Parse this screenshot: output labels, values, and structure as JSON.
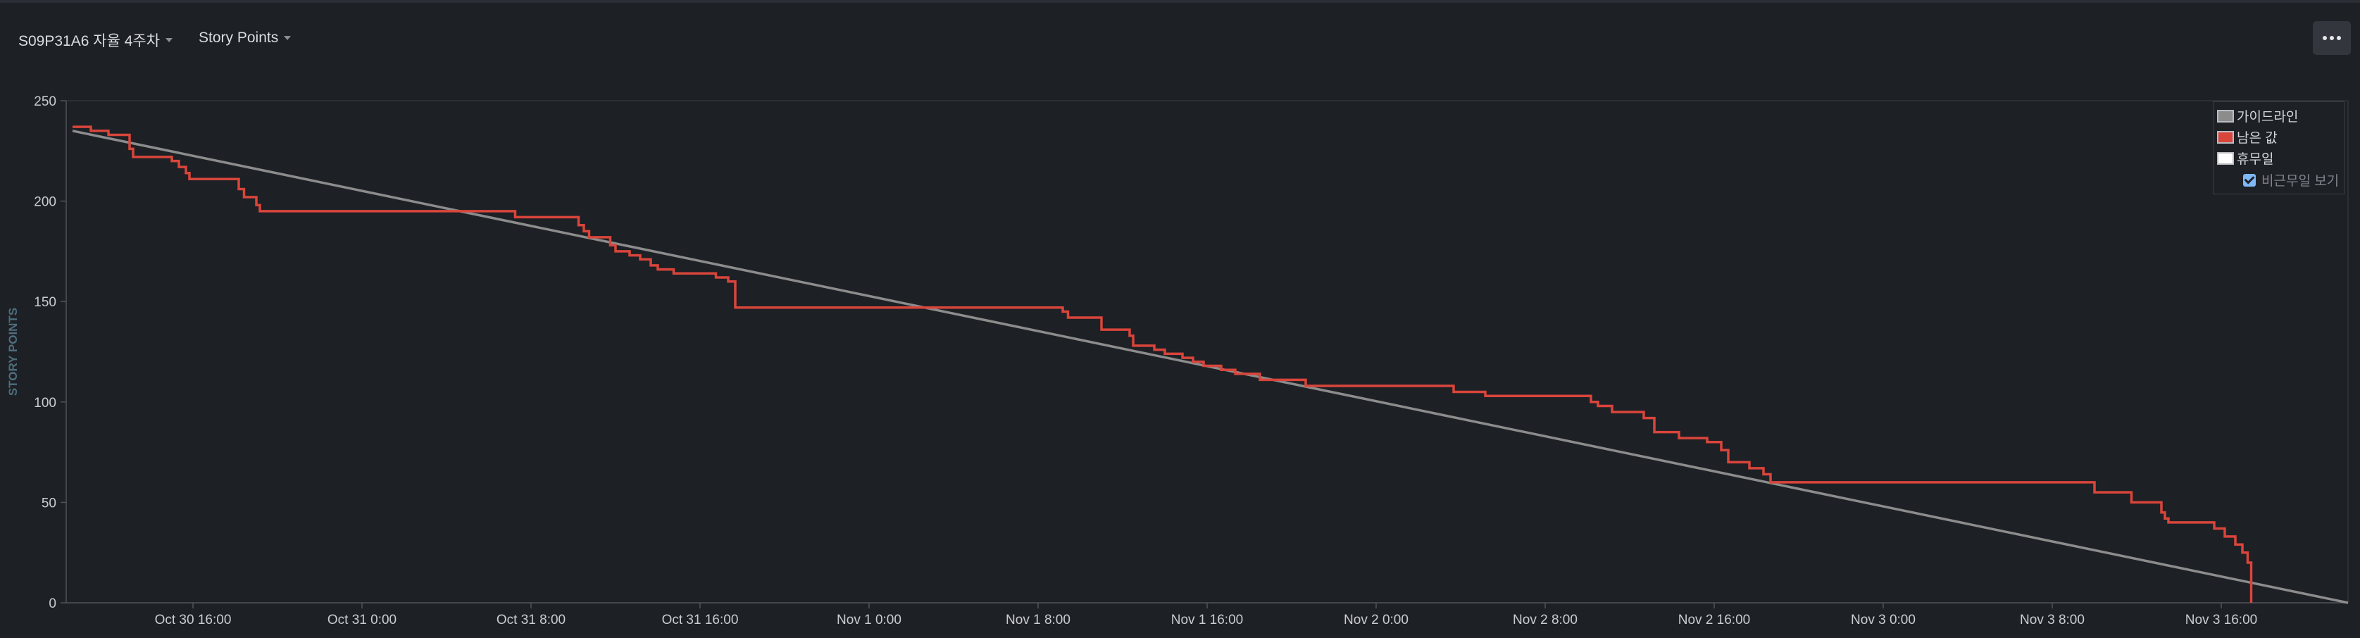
{
  "header": {
    "sprint_label": "S09P31A6 자율 4주차",
    "metric_label": "Story Points",
    "more_icon": "more-horizontal-icon"
  },
  "legend": {
    "items": [
      {
        "label": "가이드라인",
        "color": "#8c8c8c"
      },
      {
        "label": "남은 값",
        "color": "#d9453b"
      },
      {
        "label": "휴무일",
        "color": "#ffffff"
      }
    ],
    "show_non_working_label": "비근무일 보기",
    "show_non_working_checked": true
  },
  "chart_data": {
    "type": "line",
    "title": "",
    "xlabel": "",
    "ylabel": "STORY POINTS",
    "ylim": [
      0,
      250
    ],
    "yticks": [
      0,
      50,
      100,
      150,
      200,
      250
    ],
    "xlim": [
      "Oct 30 10:00",
      "Nov 3 22:00"
    ],
    "xticks": [
      "Oct 30 16:00",
      "Oct 31 0:00",
      "Oct 31 8:00",
      "Oct 31 16:00",
      "Nov 1 0:00",
      "Nov 1 8:00",
      "Nov 1 16:00",
      "Nov 2 0:00",
      "Nov 2 8:00",
      "Nov 2 16:00",
      "Nov 3 0:00",
      "Nov 3 8:00",
      "Nov 3 16:00"
    ],
    "grid": false,
    "legend_position": "top-right",
    "series": [
      {
        "name": "가이드라인",
        "color": "#8c8c8c",
        "step": false,
        "points": [
          [
            "Oct 30 10:18",
            235
          ],
          [
            "Nov 3 22:00",
            0
          ]
        ]
      },
      {
        "name": "남은 값",
        "color": "#d9453b",
        "step": true,
        "points": [
          [
            "Oct 30 10:18",
            237
          ],
          [
            "Oct 30 11:10",
            235
          ],
          [
            "Oct 30 12:00",
            233
          ],
          [
            "Oct 30 13:00",
            226
          ],
          [
            "Oct 30 13:10",
            222
          ],
          [
            "Oct 30 15:00",
            220
          ],
          [
            "Oct 30 15:20",
            217
          ],
          [
            "Oct 30 15:40",
            214
          ],
          [
            "Oct 30 15:50",
            211
          ],
          [
            "Oct 30 18:10",
            206
          ],
          [
            "Oct 30 18:25",
            202
          ],
          [
            "Oct 30 19:00",
            198
          ],
          [
            "Oct 30 19:10",
            195
          ],
          [
            "Oct 31 7:15",
            192
          ],
          [
            "Oct 31 10:15",
            188
          ],
          [
            "Oct 31 10:30",
            185
          ],
          [
            "Oct 31 10:45",
            182
          ],
          [
            "Oct 31 11:45",
            178
          ],
          [
            "Oct 31 12:00",
            175
          ],
          [
            "Oct 31 12:40",
            173
          ],
          [
            "Oct 31 13:10",
            171
          ],
          [
            "Oct 31 13:40",
            168
          ],
          [
            "Oct 31 14:00",
            166
          ],
          [
            "Oct 31 14:45",
            164
          ],
          [
            "Oct 31 16:45",
            162
          ],
          [
            "Oct 31 17:20",
            160
          ],
          [
            "Oct 31 17:40",
            147
          ],
          [
            "Nov 1 9:10",
            145
          ],
          [
            "Nov 1 9:25",
            142
          ],
          [
            "Nov 1 11:00",
            136
          ],
          [
            "Nov 1 12:20",
            133
          ],
          [
            "Nov 1 12:30",
            128
          ],
          [
            "Nov 1 13:30",
            126
          ],
          [
            "Nov 1 14:00",
            124
          ],
          [
            "Nov 1 14:50",
            122
          ],
          [
            "Nov 1 15:20",
            120
          ],
          [
            "Nov 1 15:50",
            118
          ],
          [
            "Nov 1 16:40",
            116
          ],
          [
            "Nov 1 17:20",
            114
          ],
          [
            "Nov 1 18:30",
            111
          ],
          [
            "Nov 1 20:40",
            108
          ],
          [
            "Nov 2 3:40",
            105
          ],
          [
            "Nov 2 5:10",
            103
          ],
          [
            "Nov 2 10:10",
            100
          ],
          [
            "Nov 2 10:30",
            98
          ],
          [
            "Nov 2 11:10",
            95
          ],
          [
            "Nov 2 12:40",
            92
          ],
          [
            "Nov 2 13:10",
            85
          ],
          [
            "Nov 2 14:20",
            82
          ],
          [
            "Nov 2 15:40",
            80
          ],
          [
            "Nov 2 16:20",
            76
          ],
          [
            "Nov 2 16:40",
            70
          ],
          [
            "Nov 2 17:40",
            67
          ],
          [
            "Nov 2 18:20",
            64
          ],
          [
            "Nov 2 18:40",
            60
          ],
          [
            "Nov 3 10:00",
            55
          ],
          [
            "Nov 3 11:45",
            50
          ],
          [
            "Nov 3 13:10",
            45
          ],
          [
            "Nov 3 13:20",
            42
          ],
          [
            "Nov 3 13:30",
            40
          ],
          [
            "Nov 3 15:40",
            37
          ],
          [
            "Nov 3 16:10",
            33
          ],
          [
            "Nov 3 16:40",
            29
          ],
          [
            "Nov 3 17:00",
            25
          ],
          [
            "Nov 3 17:15",
            20
          ],
          [
            "Nov 3 17:25",
            0
          ]
        ]
      }
    ]
  }
}
